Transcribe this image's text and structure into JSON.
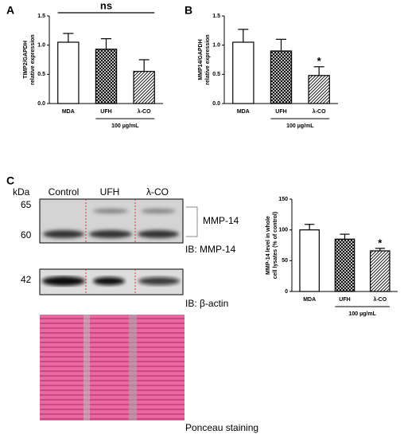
{
  "panels": [
    "A",
    "B",
    "C"
  ],
  "chart_data": [
    {
      "type": "bar",
      "ylabel": [
        "TIMP2/GAPDH",
        "relative expression"
      ],
      "categories": [
        "MDA",
        "UFH",
        "λ-CO"
      ],
      "values": [
        1.05,
        0.93,
        0.55
      ],
      "errors": [
        0.15,
        0.18,
        0.2
      ],
      "fills": [
        "white",
        "crosshatch",
        "diagonal"
      ],
      "ylim": [
        0,
        1.5
      ],
      "yticks": [
        {
          "value": 0,
          "label": "0.0"
        },
        0.5,
        {
          "value": 1,
          "label": "1.0"
        },
        1.5
      ],
      "group_label": "100 µg/mL",
      "annotation": "ns"
    },
    {
      "type": "bar",
      "ylabel": [
        "MMP14/GAPDH",
        "relative expression"
      ],
      "categories": [
        "MDA",
        "UFH",
        "λ-CO"
      ],
      "values": [
        1.05,
        0.9,
        0.48
      ],
      "errors": [
        0.22,
        0.2,
        0.15
      ],
      "fills": [
        "white",
        "crosshatch",
        "diagonal"
      ],
      "ylim": [
        0,
        1.5
      ],
      "yticks": [
        {
          "value": 0,
          "label": "0.0"
        },
        0.5,
        {
          "value": 1,
          "label": "1.0"
        },
        1.5
      ],
      "group_label": "100 µg/mL",
      "significance": [
        null,
        null,
        "*"
      ]
    },
    {
      "type": "bar",
      "ylabel": [
        "MMP-14 level in whole",
        "cell lysates (% of control)"
      ],
      "categories": [
        "MDA",
        "UFH",
        "λ-CO"
      ],
      "values": [
        100,
        85,
        66
      ],
      "errors": [
        9,
        8,
        4
      ],
      "fills": [
        "white",
        "crosshatch",
        "diagonal"
      ],
      "ylim": [
        0,
        150
      ],
      "yticks": [
        0,
        50,
        100,
        150
      ],
      "group_label": "100 µg/mL",
      "significance": [
        null,
        null,
        "*"
      ]
    }
  ],
  "blot": {
    "kda": "kDa",
    "lanes": [
      "Control",
      "UFH",
      "λ-CO"
    ],
    "markers": [
      65,
      60,
      42
    ],
    "target": "MMP-14",
    "ib": [
      "IB: MMP-14",
      "IB: β-actin"
    ],
    "stain": "Ponceau staining"
  }
}
